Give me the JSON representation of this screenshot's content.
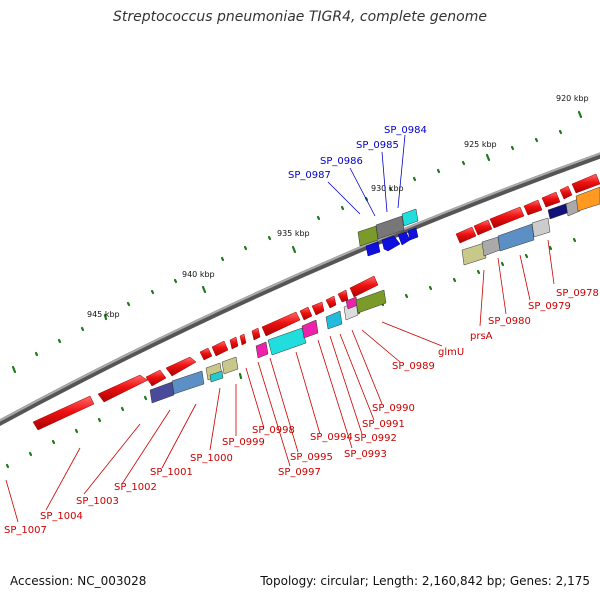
{
  "title": "Streptococcus pneumoniae TIGR4, complete genome",
  "footer": {
    "accession": "Accession: NC_003028",
    "summary": "Topology: circular; Length: 2,160,842 bp; Genes: 2,175"
  },
  "scale_ticks": [
    "920 kbp",
    "925 kbp",
    "930 kbp",
    "935 kbp",
    "940 kbp",
    "945 kbp"
  ],
  "colors": {
    "backbone": "#777777",
    "tick": "#1f7a1f",
    "gene_red": "#ee1111",
    "label_red": "#cc0000",
    "label_blue": "#0000cc"
  },
  "blue_labels": [
    "SP_0984",
    "SP_0985",
    "SP_0986",
    "SP_0987"
  ],
  "red_labels": [
    "glmU",
    "prsA",
    "SP_0978",
    "SP_0979",
    "SP_0980",
    "SP_0989",
    "SP_0990",
    "SP_0991",
    "SP_0992",
    "SP_0993",
    "SP_0994",
    "SP_0995",
    "SP_0997",
    "SP_0998",
    "SP_0999",
    "SP_1000",
    "SP_1001",
    "SP_1002",
    "SP_1003",
    "SP_1004",
    "SP_1007"
  ]
}
